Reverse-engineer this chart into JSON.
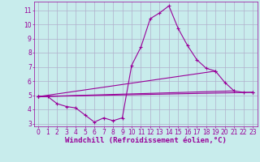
{
  "background_color": "#c8ecec",
  "grid_color": "#b0b0cc",
  "line_color": "#990099",
  "marker_color": "#990099",
  "xlabel": "Windchill (Refroidissement éolien,°C)",
  "xlabel_fontsize": 6.5,
  "tick_fontsize": 5.5,
  "xlim": [
    -0.5,
    23.5
  ],
  "ylim": [
    2.8,
    11.6
  ],
  "yticks": [
    3,
    4,
    5,
    6,
    7,
    8,
    9,
    10,
    11
  ],
  "xticks": [
    0,
    1,
    2,
    3,
    4,
    5,
    6,
    7,
    8,
    9,
    10,
    11,
    12,
    13,
    14,
    15,
    16,
    17,
    18,
    19,
    20,
    21,
    22,
    23
  ],
  "series": [
    {
      "x": [
        0,
        1,
        2,
        3,
        4,
        5,
        6,
        7,
        8,
        9,
        10,
        11,
        12,
        13,
        14,
        15,
        16,
        17,
        18,
        19,
        20,
        21,
        22,
        23
      ],
      "y": [
        4.9,
        4.9,
        4.4,
        4.2,
        4.1,
        3.6,
        3.1,
        3.4,
        3.2,
        3.4,
        7.1,
        8.4,
        10.4,
        10.8,
        11.3,
        9.7,
        8.5,
        7.5,
        6.9,
        6.7,
        5.9,
        5.3,
        5.2,
        5.2
      ]
    },
    {
      "x": [
        0,
        23
      ],
      "y": [
        4.9,
        5.2
      ]
    },
    {
      "x": [
        0,
        19
      ],
      "y": [
        4.9,
        6.7
      ]
    },
    {
      "x": [
        0,
        21
      ],
      "y": [
        4.9,
        5.3
      ]
    }
  ]
}
